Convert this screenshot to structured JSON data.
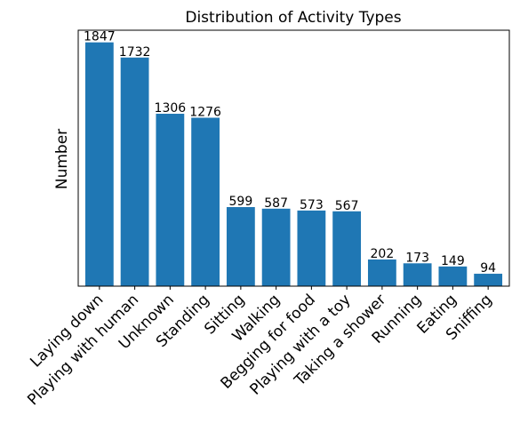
{
  "chart_data": {
    "type": "bar",
    "title": "Distribution of Activity Types",
    "xlabel": "",
    "ylabel": "Number",
    "categories": [
      "Laying down",
      "Playing with human",
      "Unknown",
      "Standing",
      "Sitting",
      "Walking",
      "Begging for food",
      "Playing with a toy",
      "Taking a shower",
      "Running",
      "Eating",
      "Sniffing"
    ],
    "values": [
      1847,
      1732,
      1306,
      1276,
      599,
      587,
      573,
      567,
      202,
      173,
      149,
      94
    ],
    "ylim": [
      0,
      1939
    ],
    "grid": false,
    "legend": "none",
    "y_ticks_visible": false,
    "bar_color": "#1f77b4",
    "data_labels": true
  }
}
